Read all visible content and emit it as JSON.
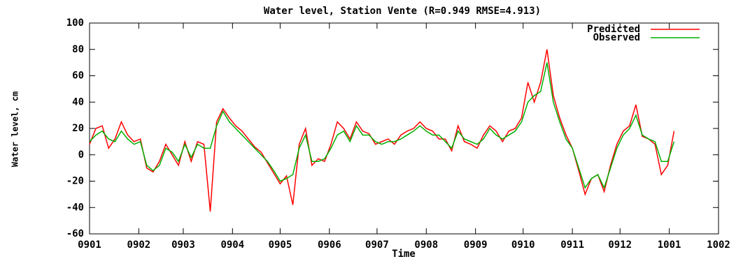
{
  "chart_data": {
    "type": "line",
    "title": "Water level, Station Vente (R=0.949 RMSE=4.913)",
    "x_label": "Time",
    "y_label": "Water level, cm",
    "xlim": [
      0,
      396
    ],
    "xticks": [
      {
        "value": 0,
        "label": "0901"
      },
      {
        "value": 31,
        "label": "0902"
      },
      {
        "value": 59,
        "label": "0903"
      },
      {
        "value": 90,
        "label": "0904"
      },
      {
        "value": 120,
        "label": "0905"
      },
      {
        "value": 151,
        "label": "0906"
      },
      {
        "value": 181,
        "label": "0907"
      },
      {
        "value": 212,
        "label": "0908"
      },
      {
        "value": 243,
        "label": "0909"
      },
      {
        "value": 273,
        "label": "0910"
      },
      {
        "value": 304,
        "label": "0911"
      },
      {
        "value": 334,
        "label": "0912"
      },
      {
        "value": 365,
        "label": "1001"
      },
      {
        "value": 396,
        "label": "1002"
      }
    ],
    "ylim": [
      -60,
      100
    ],
    "yticks": [
      -60,
      -40,
      -20,
      0,
      20,
      40,
      60,
      80,
      100
    ],
    "legend": "top-right",
    "x": [
      0,
      4,
      8,
      12,
      16,
      20,
      24,
      28,
      32,
      36,
      40,
      44,
      48,
      52,
      56,
      60,
      64,
      68,
      72,
      76,
      80,
      84,
      88,
      92,
      96,
      100,
      104,
      108,
      112,
      116,
      120,
      124,
      128,
      132,
      136,
      140,
      144,
      148,
      152,
      156,
      160,
      164,
      168,
      172,
      176,
      180,
      184,
      188,
      192,
      196,
      200,
      204,
      208,
      212,
      216,
      220,
      224,
      228,
      232,
      236,
      240,
      244,
      248,
      252,
      256,
      260,
      264,
      268,
      272,
      276,
      280,
      284,
      288,
      292,
      296,
      300,
      304,
      308,
      312,
      316,
      320,
      324,
      328,
      332,
      336,
      340,
      344,
      348,
      352,
      356,
      360,
      364,
      368
    ],
    "series": [
      {
        "name": "Predicted",
        "color": "#ff0000",
        "values": [
          8,
          20,
          22,
          5,
          12,
          25,
          15,
          10,
          12,
          -10,
          -13,
          -5,
          8,
          0,
          -8,
          10,
          -5,
          10,
          8,
          -43,
          25,
          35,
          28,
          22,
          18,
          12,
          6,
          2,
          -6,
          -14,
          -22,
          -16,
          -38,
          8,
          20,
          -8,
          -3,
          -5,
          8,
          25,
          20,
          12,
          25,
          18,
          16,
          8,
          10,
          12,
          8,
          15,
          18,
          20,
          25,
          20,
          18,
          12,
          12,
          3,
          22,
          10,
          8,
          5,
          15,
          22,
          18,
          10,
          18,
          20,
          28,
          55,
          40,
          55,
          80,
          45,
          28,
          15,
          5,
          -12,
          -30,
          -18,
          -15,
          -28,
          -8,
          8,
          18,
          22,
          38,
          14,
          12,
          8,
          -15,
          -8,
          18
        ]
      },
      {
        "name": "Observed",
        "color": "#00b000",
        "values": [
          10,
          15,
          18,
          12,
          10,
          18,
          12,
          8,
          10,
          -8,
          -12,
          -8,
          5,
          2,
          -5,
          8,
          -2,
          8,
          5,
          5,
          22,
          33,
          25,
          20,
          15,
          10,
          5,
          0,
          -5,
          -12,
          -20,
          -18,
          -15,
          5,
          15,
          -5,
          -5,
          -3,
          5,
          15,
          18,
          10,
          22,
          15,
          15,
          10,
          8,
          10,
          10,
          12,
          15,
          18,
          22,
          18,
          15,
          15,
          10,
          5,
          18,
          12,
          10,
          8,
          12,
          20,
          15,
          12,
          15,
          18,
          25,
          40,
          45,
          48,
          70,
          40,
          25,
          12,
          5,
          -10,
          -25,
          -18,
          -15,
          -25,
          -10,
          5,
          15,
          20,
          30,
          15,
          12,
          10,
          -5,
          -5,
          10
        ]
      }
    ]
  }
}
